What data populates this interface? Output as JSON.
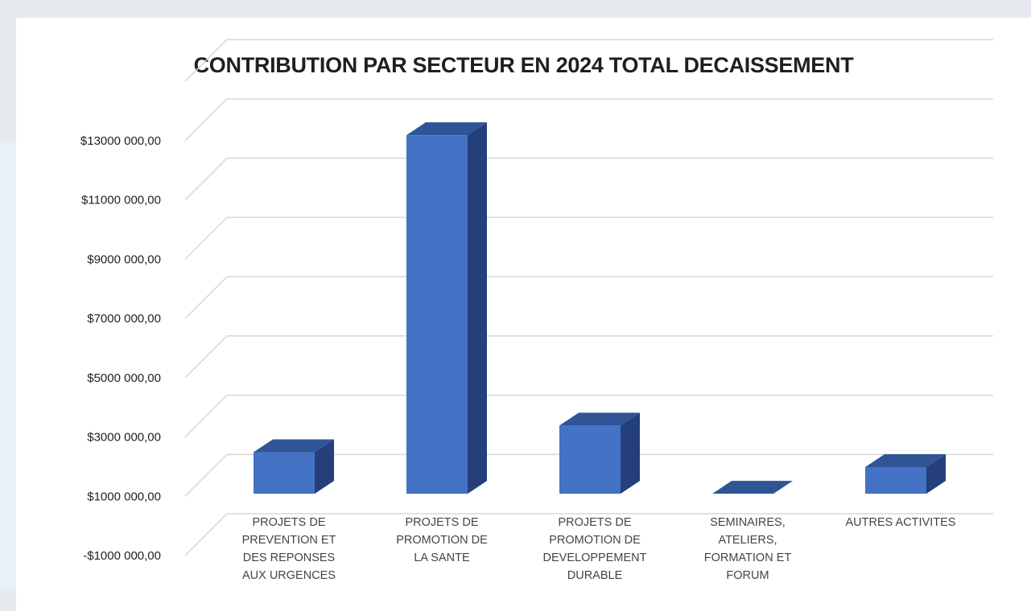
{
  "chart_data": {
    "type": "bar",
    "title": "CONTRIBUTION PAR SECTEUR EN 2024 TOTAL DECAISSEMENT",
    "xlabel": "",
    "ylabel": "",
    "ylim": [
      -1000000,
      13000000
    ],
    "y_ticks": [
      -1000000,
      1000000,
      3000000,
      5000000,
      7000000,
      9000000,
      11000000,
      13000000
    ],
    "y_tick_labels": [
      "-$1000 000,00",
      "$1000 000,00",
      "$3000 000,00",
      "$5000 000,00",
      "$7000 000,00",
      "$9000 000,00",
      "$11000 000,00",
      "$13000 000,00"
    ],
    "grid": true,
    "style": "3d-column",
    "bar_color": "#4472c4",
    "categories": [
      [
        "PROJETS DE",
        "PREVENTION ET",
        "DES REPONSES",
        "AUX URGENCES"
      ],
      [
        "PROJETS DE",
        "PROMOTION DE",
        "LA SANTE"
      ],
      [
        "PROJETS DE",
        "PROMOTION DE",
        "DEVELOPPEMENT",
        "DURABLE"
      ],
      [
        "SEMINAIRES,",
        "ATELIERS,",
        "FORMATION ET",
        "FORUM"
      ],
      [
        "AUTRES ACTIVITES"
      ]
    ],
    "values": [
      1400000,
      12100000,
      2300000,
      0,
      900000
    ]
  }
}
